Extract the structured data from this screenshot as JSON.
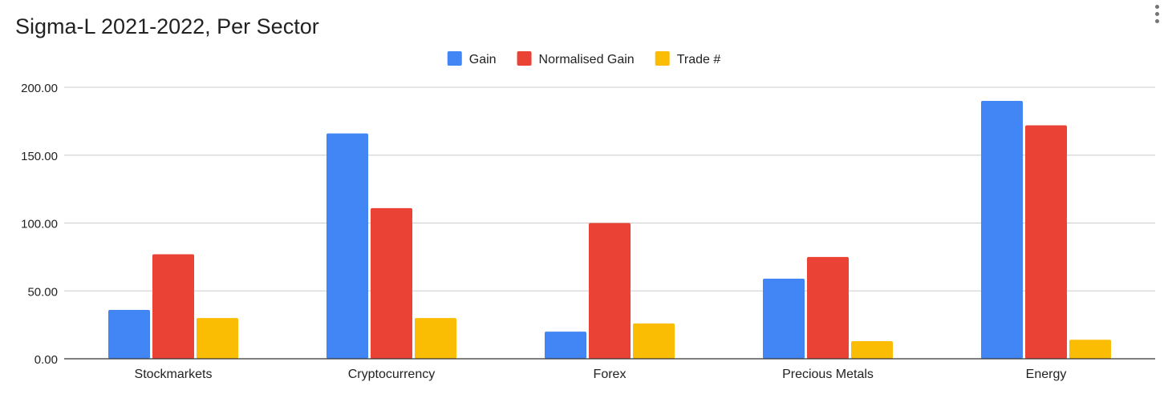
{
  "chart_data": {
    "type": "bar",
    "title": "Sigma-L 2021-2022, Per Sector",
    "categories": [
      "Stockmarkets",
      "Cryptocurrency",
      "Forex",
      "Precious Metals",
      "Energy"
    ],
    "series": [
      {
        "name": "Gain",
        "color": "#4285f4",
        "values": [
          36,
          166,
          20,
          59,
          190
        ]
      },
      {
        "name": "Normalised Gain",
        "color": "#ea4335",
        "values": [
          77,
          111,
          100,
          75,
          172
        ]
      },
      {
        "name": "Trade #",
        "color": "#fbbc04",
        "values": [
          30,
          30,
          26,
          13,
          14
        ]
      }
    ],
    "ylim": [
      0,
      200
    ],
    "yticks": [
      "0.00",
      "50.00",
      "100.00",
      "150.00",
      "200.00"
    ],
    "ytick_values": [
      0,
      50,
      100,
      150,
      200
    ],
    "legend_position": "top-center",
    "grid": true
  },
  "ui": {
    "menu_icon": "more-vert-icon"
  }
}
